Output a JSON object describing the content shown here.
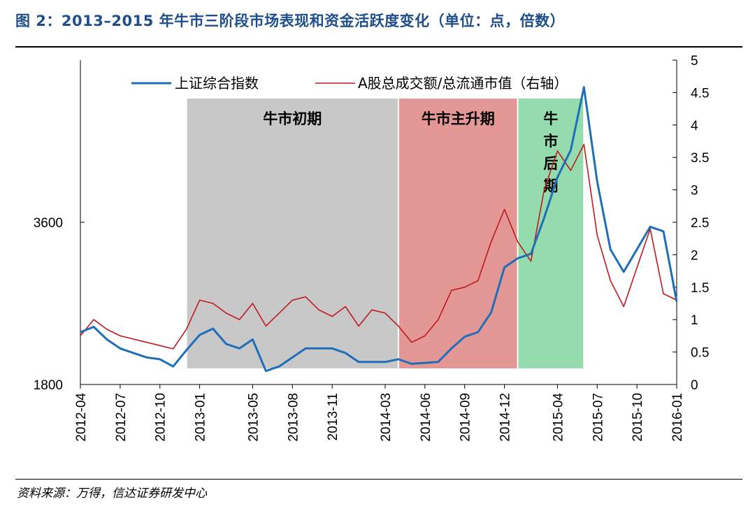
{
  "figure": {
    "title": "图 2：2013–2015 年牛市三阶段市场表现和资金活跃度变化（单位：点，倍数）",
    "source": "资料来源：万得，信达证券研发中心"
  },
  "colors": {
    "index_line": "#1f6fb8",
    "turnover_line": "#c0191e",
    "phase_early": "#c8c8c8",
    "phase_main": "#e49896",
    "phase_late": "#94dcad",
    "axis": "#000000"
  },
  "chart_data": {
    "type": "line",
    "title": "2013–2015 年牛市三阶段市场表现和资金活跃度变化",
    "legend_position": "top",
    "x_ticks": [
      "2012-04",
      "2012-07",
      "2012-10",
      "2013-01",
      "2013-05",
      "2013-08",
      "2013-11",
      "2014-03",
      "2014-06",
      "2014-09",
      "2014-12",
      "2015-04",
      "2015-07",
      "2015-10",
      "2016-01"
    ],
    "left_axis": {
      "ticks": [
        "3600",
        "1800"
      ],
      "ylim": [
        1800,
        5400
      ]
    },
    "right_axis": {
      "ticks": [
        "5",
        "4.5",
        "4",
        "3.5",
        "3",
        "2.5",
        "2",
        "1.5",
        "1",
        "0.5",
        "0"
      ],
      "ylim": [
        0,
        5
      ]
    },
    "phases": [
      {
        "name": "牛市初期",
        "start": "2012-12",
        "end": "2014-04"
      },
      {
        "name": "牛市主升期",
        "start": "2014-04",
        "end": "2015-01"
      },
      {
        "name": "牛市后期",
        "start": "2015-01",
        "end": "2015-06"
      }
    ],
    "series": [
      {
        "name": "上证综合指数",
        "axis": "left",
        "x": [
          "2012-04",
          "2012-05",
          "2012-06",
          "2012-07",
          "2012-08",
          "2012-09",
          "2012-10",
          "2012-11",
          "2012-12",
          "2013-01",
          "2013-02",
          "2013-03",
          "2013-04",
          "2013-05",
          "2013-06",
          "2013-07",
          "2013-08",
          "2013-09",
          "2013-10",
          "2013-11",
          "2013-12",
          "2014-01",
          "2014-02",
          "2014-03",
          "2014-04",
          "2014-05",
          "2014-06",
          "2014-07",
          "2014-08",
          "2014-09",
          "2014-10",
          "2014-11",
          "2014-12",
          "2015-01",
          "2015-02",
          "2015-03",
          "2015-04",
          "2015-05",
          "2015-06",
          "2015-07",
          "2015-08",
          "2015-09",
          "2015-10",
          "2015-11",
          "2015-12",
          "2016-01"
        ],
        "values": [
          2380,
          2440,
          2300,
          2200,
          2150,
          2100,
          2080,
          2000,
          2180,
          2350,
          2420,
          2250,
          2200,
          2300,
          1950,
          2000,
          2100,
          2200,
          2200,
          2200,
          2150,
          2050,
          2050,
          2050,
          2080,
          2030,
          2040,
          2050,
          2200,
          2330,
          2380,
          2600,
          3100,
          3200,
          3250,
          3650,
          4100,
          4400,
          5100,
          4050,
          3300,
          3050,
          3300,
          3550,
          3500,
          2720
        ]
      },
      {
        "name": "A股总成交额/总流通市值（右轴）",
        "axis": "right",
        "x": [
          "2012-04",
          "2012-05",
          "2012-06",
          "2012-07",
          "2012-08",
          "2012-09",
          "2012-10",
          "2012-11",
          "2012-12",
          "2013-01",
          "2013-02",
          "2013-03",
          "2013-04",
          "2013-05",
          "2013-06",
          "2013-07",
          "2013-08",
          "2013-09",
          "2013-10",
          "2013-11",
          "2013-12",
          "2014-01",
          "2014-02",
          "2014-03",
          "2014-04",
          "2014-05",
          "2014-06",
          "2014-07",
          "2014-08",
          "2014-09",
          "2014-10",
          "2014-11",
          "2014-12",
          "2015-01",
          "2015-02",
          "2015-03",
          "2015-04",
          "2015-05",
          "2015-06",
          "2015-07",
          "2015-08",
          "2015-09",
          "2015-10",
          "2015-11",
          "2015-12",
          "2016-01"
        ],
        "values": [
          0.75,
          1.0,
          0.85,
          0.75,
          0.7,
          0.65,
          0.6,
          0.55,
          0.85,
          1.3,
          1.25,
          1.1,
          1.0,
          1.25,
          0.9,
          1.1,
          1.3,
          1.35,
          1.15,
          1.05,
          1.2,
          0.9,
          1.15,
          1.1,
          0.9,
          0.65,
          0.75,
          1.0,
          1.45,
          1.5,
          1.6,
          2.2,
          2.7,
          2.2,
          1.9,
          3.0,
          3.6,
          3.3,
          3.7,
          2.3,
          1.6,
          1.2,
          1.8,
          2.4,
          1.4,
          1.3
        ]
      }
    ]
  }
}
